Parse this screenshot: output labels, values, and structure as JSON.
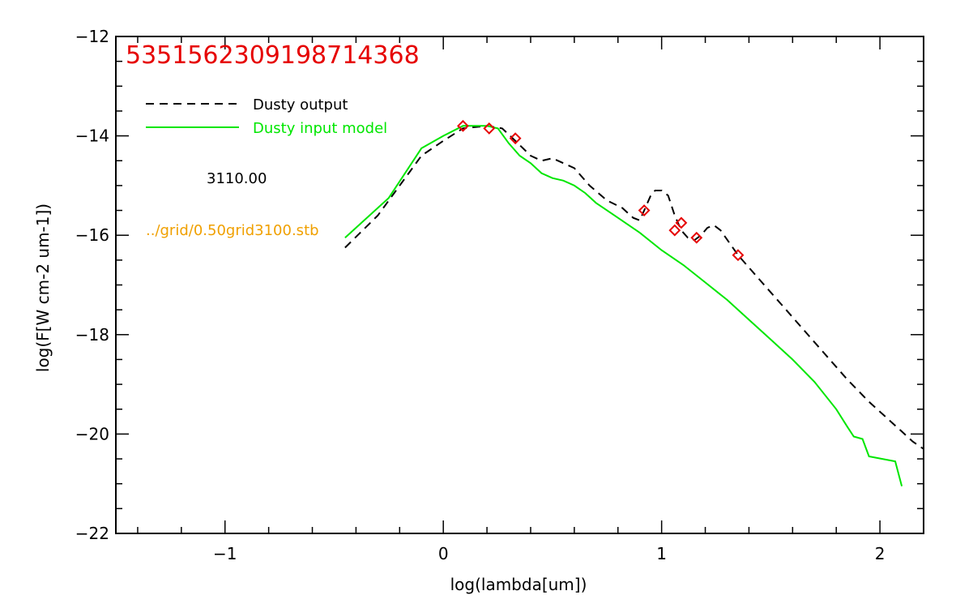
{
  "chart_data": {
    "type": "line",
    "title": "5351562309198714368",
    "xlabel": "log(lambda[um])",
    "ylabel": "log(F[W cm-2 um-1])",
    "xlim": [
      -1.5,
      2.2
    ],
    "ylim": [
      -22,
      -12
    ],
    "xticks": [
      -1,
      0,
      1,
      2
    ],
    "xtick_labels": [
      "−1",
      "0",
      "1",
      "2"
    ],
    "yticks": [
      -22,
      -20,
      -18,
      -16,
      -14,
      -12
    ],
    "ytick_labels": [
      "−22",
      "−20",
      "−18",
      "−16",
      "−14",
      "−12"
    ],
    "grid": false,
    "legend_position": "top-left",
    "annotations": [
      {
        "text": "3110.00",
        "color": "#000000"
      },
      {
        "text": "../grid/0.50grid3100.stb",
        "color": "#f0a000"
      }
    ],
    "series": [
      {
        "name": "Dusty output",
        "style": "dashed",
        "color": "#000000",
        "x": [
          -0.45,
          -0.3,
          -0.15,
          -0.1,
          0.0,
          0.09,
          0.2,
          0.27,
          0.33,
          0.4,
          0.45,
          0.5,
          0.55,
          0.6,
          0.67,
          0.75,
          0.82,
          0.87,
          0.9,
          0.92,
          0.95,
          0.97,
          1.0,
          1.03,
          1.06,
          1.09,
          1.12,
          1.15,
          1.18,
          1.21,
          1.24,
          1.27,
          1.31,
          1.35,
          1.45,
          1.55,
          1.65,
          1.75,
          1.85,
          1.95,
          2.05,
          2.1,
          2.15,
          2.2
        ],
        "y": [
          -16.25,
          -15.6,
          -14.7,
          -14.4,
          -14.1,
          -13.85,
          -13.8,
          -13.85,
          -14.1,
          -14.4,
          -14.5,
          -14.45,
          -14.55,
          -14.65,
          -15.0,
          -15.3,
          -15.45,
          -15.65,
          -15.7,
          -15.5,
          -15.2,
          -15.1,
          -15.1,
          -15.2,
          -15.6,
          -15.9,
          -16.05,
          -16.1,
          -16.0,
          -15.85,
          -15.8,
          -15.9,
          -16.15,
          -16.4,
          -16.9,
          -17.4,
          -17.9,
          -18.4,
          -18.9,
          -19.35,
          -19.75,
          -19.95,
          -20.15,
          -20.3
        ]
      },
      {
        "name": "Dusty input model",
        "style": "solid",
        "color": "#00e600",
        "x": [
          -0.45,
          -0.25,
          -0.1,
          0.0,
          0.09,
          0.2,
          0.25,
          0.3,
          0.35,
          0.4,
          0.45,
          0.5,
          0.55,
          0.6,
          0.65,
          0.7,
          0.8,
          0.9,
          1.0,
          1.1,
          1.2,
          1.3,
          1.4,
          1.5,
          1.6,
          1.7,
          1.8,
          1.85,
          1.88,
          1.92,
          1.95,
          2.07,
          2.1
        ],
        "y": [
          -16.05,
          -15.25,
          -14.25,
          -14.0,
          -13.8,
          -13.8,
          -13.85,
          -14.15,
          -14.4,
          -14.55,
          -14.75,
          -14.85,
          -14.9,
          -15.0,
          -15.15,
          -15.35,
          -15.65,
          -15.95,
          -16.3,
          -16.6,
          -16.95,
          -17.3,
          -17.7,
          -18.1,
          -18.5,
          -18.95,
          -19.5,
          -19.85,
          -20.05,
          -20.1,
          -20.45,
          -20.55,
          -21.05
        ]
      },
      {
        "name": "",
        "style": "markers",
        "marker": "diamond",
        "color": "#e60000",
        "x": [
          0.09,
          0.21,
          0.33,
          0.92,
          1.06,
          1.09,
          1.16,
          1.35
        ],
        "y": [
          -13.8,
          -13.85,
          -14.05,
          -15.5,
          -15.9,
          -15.75,
          -16.05,
          -16.4
        ]
      }
    ]
  }
}
